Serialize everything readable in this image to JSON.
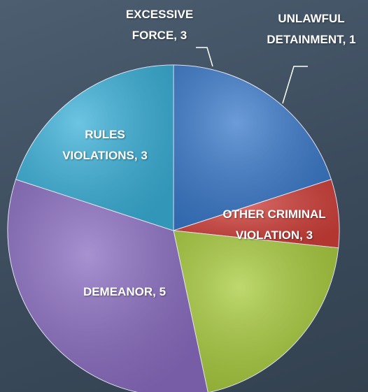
{
  "chart_data": {
    "type": "pie",
    "categories": [
      "EXCESSIVE FORCE",
      "UNLAWFUL DETAINMENT",
      "OTHER CRIMINAL VIOLATION",
      "DEMEANOR",
      "RULES VIOLATIONS"
    ],
    "values": [
      3,
      1,
      3,
      5,
      3
    ],
    "colors": [
      "#3b7bcc",
      "#d2403a",
      "#a9cc3e",
      "#8b6dc2",
      "#3bb1d9"
    ],
    "label_separator": ","
  }
}
